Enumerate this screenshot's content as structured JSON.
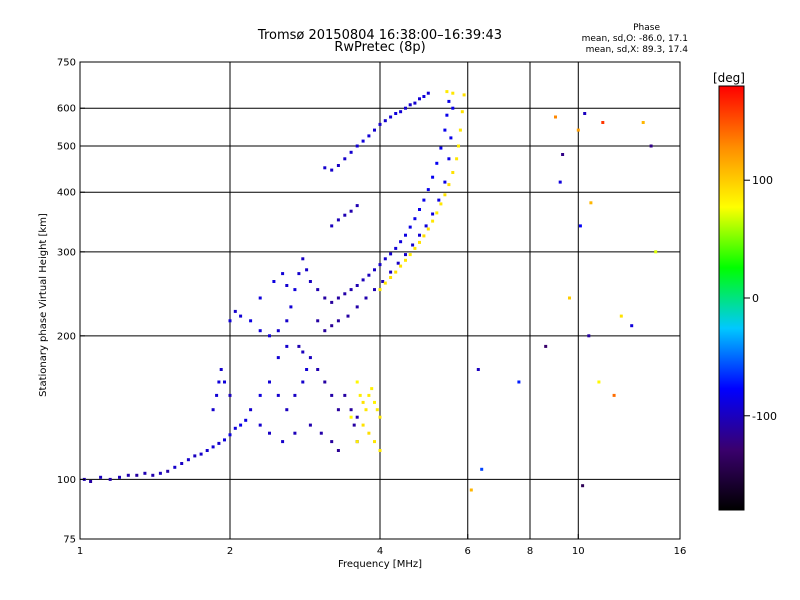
{
  "chart_data": {
    "type": "scatter",
    "title": "Tromsø 20150804 16:38:00–16:39:43",
    "subtitle": "RwPretec (8p)",
    "xlabel": "Frequency [MHz]",
    "ylabel": "Stationary phase Virtual Height [km]",
    "x_scale": "log",
    "y_scale": "log",
    "xlim": [
      1,
      16
    ],
    "ylim": [
      75,
      750
    ],
    "x_ticks": [
      "1",
      "2",
      "4",
      "6",
      "8",
      "10",
      "16"
    ],
    "y_ticks": [
      "75",
      "100",
      "200",
      "300",
      "400",
      "500",
      "600",
      "750"
    ],
    "x_gridlines": [
      2,
      4,
      6,
      8,
      10
    ],
    "y_gridlines": [
      100,
      200,
      300,
      400,
      500,
      600
    ],
    "colorbar": {
      "label": "[deg]",
      "ticks": [
        "100",
        "0",
        "-100"
      ],
      "range": [
        -180,
        180
      ],
      "colors": [
        "#000000",
        "#3a006e",
        "#0000ff",
        "#00c8ff",
        "#00ff00",
        "#ffff00",
        "#ff8c00",
        "#ff0000"
      ]
    },
    "phase_stats": {
      "title": "Phase",
      "o_line": "mean, sd,O: -86.0, 17.1",
      "x_line": "mean, sd,X: 89.3, 17.4"
    },
    "series": [
      {
        "points": [
          [
            1.02,
            100,
            -105
          ],
          [
            1.05,
            99,
            -110
          ],
          [
            1.1,
            101,
            -100
          ],
          [
            1.15,
            100,
            -108
          ],
          [
            1.2,
            101,
            -102
          ],
          [
            1.25,
            102,
            -105
          ],
          [
            1.3,
            102,
            -110
          ],
          [
            1.35,
            103,
            -104
          ],
          [
            1.4,
            102,
            -106
          ],
          [
            1.45,
            103,
            -100
          ],
          [
            1.5,
            104,
            -108
          ],
          [
            1.55,
            106,
            -96
          ],
          [
            1.6,
            108,
            -98
          ],
          [
            1.65,
            110,
            -95
          ],
          [
            1.7,
            112,
            -100
          ],
          [
            1.75,
            113,
            -96
          ],
          [
            1.8,
            115,
            -94
          ],
          [
            1.85,
            117,
            -92
          ],
          [
            1.9,
            119,
            -95
          ],
          [
            1.95,
            121,
            -90
          ],
          [
            2.0,
            124,
            -88
          ],
          [
            2.05,
            128,
            -90
          ],
          [
            2.1,
            130,
            -85
          ],
          [
            2.15,
            133,
            -88
          ],
          [
            1.85,
            140,
            -95
          ],
          [
            1.88,
            150,
            -92
          ],
          [
            1.9,
            160,
            -90
          ],
          [
            1.92,
            170,
            -95
          ],
          [
            1.95,
            160,
            -90
          ],
          [
            2.0,
            150,
            -100
          ],
          [
            2.2,
            140,
            -95
          ],
          [
            2.3,
            150,
            -90
          ],
          [
            2.4,
            160,
            -92
          ],
          [
            2.5,
            150,
            -95
          ],
          [
            2.6,
            140,
            -100
          ],
          [
            2.7,
            150,
            -98
          ],
          [
            2.8,
            160,
            -95
          ],
          [
            2.85,
            170,
            -92
          ],
          [
            2.9,
            180,
            -100
          ],
          [
            3.0,
            170,
            -105
          ],
          [
            3.1,
            160,
            -110
          ],
          [
            3.2,
            150,
            -108
          ],
          [
            3.3,
            140,
            -112
          ],
          [
            3.4,
            150,
            -110
          ],
          [
            3.5,
            140,
            -112
          ],
          [
            3.55,
            130,
            -110
          ],
          [
            3.6,
            135,
            -108
          ],
          [
            2.75,
            190,
            -105
          ],
          [
            2.8,
            185,
            -100
          ],
          [
            2.6,
            190,
            -95
          ],
          [
            2.5,
            180,
            -92
          ],
          [
            3.2,
            120,
            -112
          ],
          [
            3.3,
            115,
            -115
          ],
          [
            3.6,
            120,
            -110
          ],
          [
            2.3,
            130,
            -95
          ],
          [
            2.4,
            125,
            -98
          ],
          [
            2.55,
            120,
            -96
          ],
          [
            2.7,
            125,
            -102
          ],
          [
            2.9,
            130,
            -106
          ],
          [
            3.05,
            125,
            -108
          ]
        ]
      },
      {
        "points": [
          [
            2.0,
            215,
            -90
          ],
          [
            2.05,
            225,
            -95
          ],
          [
            2.1,
            220,
            -92
          ],
          [
            2.2,
            215,
            -88
          ],
          [
            2.3,
            205,
            -90
          ],
          [
            2.4,
            200,
            -92
          ],
          [
            2.5,
            205,
            -94
          ],
          [
            2.6,
            215,
            -96
          ],
          [
            2.65,
            230,
            -92
          ],
          [
            2.7,
            250,
            -90
          ],
          [
            2.75,
            270,
            -95
          ],
          [
            2.8,
            290,
            -98
          ],
          [
            2.3,
            240,
            -90
          ],
          [
            2.45,
            260,
            -88
          ],
          [
            2.55,
            270,
            -92
          ],
          [
            2.6,
            255,
            -94
          ],
          [
            2.85,
            275,
            -96
          ],
          [
            2.9,
            260,
            -100
          ],
          [
            3.0,
            250,
            -105
          ],
          [
            3.1,
            240,
            -110
          ],
          [
            3.2,
            235,
            -112
          ],
          [
            3.3,
            240,
            -110
          ],
          [
            3.4,
            245,
            -108
          ],
          [
            3.5,
            250,
            -106
          ],
          [
            3.6,
            255,
            -104
          ],
          [
            3.7,
            262,
            -102
          ],
          [
            3.8,
            268,
            -100
          ],
          [
            3.9,
            275,
            -98
          ],
          [
            4.0,
            282,
            -96
          ],
          [
            4.1,
            290,
            -95
          ],
          [
            4.2,
            297,
            -94
          ],
          [
            4.3,
            305,
            -92
          ],
          [
            4.4,
            315,
            -90
          ],
          [
            4.5,
            325,
            -88
          ],
          [
            4.6,
            338,
            -87
          ],
          [
            4.7,
            352,
            -86
          ],
          [
            4.8,
            368,
            -85
          ],
          [
            4.9,
            385,
            -84
          ],
          [
            5.0,
            405,
            -83
          ],
          [
            5.1,
            430,
            -82
          ],
          [
            5.2,
            460,
            -82
          ],
          [
            5.3,
            495,
            -83
          ],
          [
            5.4,
            540,
            -84
          ],
          [
            5.45,
            580,
            -85
          ],
          [
            5.5,
            620,
            -86
          ],
          [
            3.0,
            215,
            -110
          ],
          [
            3.1,
            205,
            -112
          ],
          [
            3.2,
            210,
            -114
          ],
          [
            3.3,
            215,
            -112
          ],
          [
            3.45,
            220,
            -110
          ],
          [
            3.6,
            230,
            -108
          ],
          [
            3.75,
            240,
            -106
          ],
          [
            3.9,
            250,
            -104
          ],
          [
            4.05,
            260,
            -102
          ],
          [
            4.2,
            272,
            -100
          ],
          [
            4.35,
            284,
            -98
          ],
          [
            4.5,
            296,
            -96
          ],
          [
            4.65,
            310,
            -94
          ],
          [
            4.8,
            325,
            -92
          ],
          [
            4.95,
            340,
            -90
          ],
          [
            5.1,
            360,
            -89
          ],
          [
            5.25,
            385,
            -88
          ],
          [
            5.4,
            420,
            -87
          ],
          [
            5.5,
            470,
            -86
          ],
          [
            5.55,
            520,
            -85
          ],
          [
            5.6,
            600,
            -84
          ]
        ]
      },
      {
        "points": [
          [
            3.1,
            450,
            -95
          ],
          [
            3.2,
            445,
            -96
          ],
          [
            3.3,
            455,
            -98
          ],
          [
            3.4,
            470,
            -96
          ],
          [
            3.5,
            485,
            -94
          ],
          [
            3.6,
            500,
            -92
          ],
          [
            3.7,
            512,
            -90
          ],
          [
            3.8,
            525,
            -92
          ],
          [
            3.9,
            540,
            -94
          ],
          [
            4.0,
            555,
            -96
          ],
          [
            4.1,
            565,
            -94
          ],
          [
            4.2,
            575,
            -92
          ],
          [
            4.3,
            585,
            -90
          ],
          [
            4.4,
            590,
            -92
          ],
          [
            4.5,
            600,
            -94
          ],
          [
            4.6,
            610,
            -96
          ],
          [
            4.7,
            615,
            -94
          ],
          [
            4.8,
            628,
            -92
          ],
          [
            4.9,
            635,
            -90
          ],
          [
            5.0,
            645,
            -92
          ],
          [
            3.2,
            340,
            -100
          ],
          [
            3.3,
            350,
            -102
          ],
          [
            3.4,
            358,
            -104
          ],
          [
            3.5,
            365,
            -106
          ],
          [
            3.6,
            375,
            -104
          ]
        ]
      },
      {
        "points": [
          [
            3.6,
            160,
            80
          ],
          [
            3.65,
            150,
            85
          ],
          [
            3.7,
            145,
            90
          ],
          [
            3.75,
            140,
            88
          ],
          [
            3.8,
            150,
            86
          ],
          [
            3.85,
            155,
            84
          ],
          [
            3.9,
            145,
            82
          ],
          [
            3.95,
            140,
            86
          ],
          [
            4.0,
            135,
            88
          ],
          [
            3.7,
            130,
            90
          ],
          [
            3.8,
            125,
            92
          ],
          [
            3.9,
            120,
            88
          ],
          [
            4.0,
            115,
            86
          ],
          [
            3.6,
            120,
            84
          ],
          [
            3.5,
            135,
            80
          ],
          [
            4.0,
            250,
            85
          ],
          [
            4.1,
            258,
            88
          ],
          [
            4.2,
            265,
            90
          ],
          [
            4.3,
            272,
            92
          ],
          [
            4.4,
            280,
            90
          ],
          [
            4.5,
            288,
            88
          ],
          [
            4.6,
            296,
            86
          ],
          [
            4.7,
            305,
            88
          ],
          [
            4.8,
            314,
            90
          ],
          [
            4.9,
            324,
            92
          ],
          [
            5.0,
            335,
            90
          ],
          [
            5.1,
            348,
            88
          ],
          [
            5.2,
            362,
            86
          ],
          [
            5.3,
            378,
            88
          ],
          [
            5.4,
            395,
            90
          ],
          [
            5.5,
            415,
            92
          ],
          [
            5.6,
            440,
            90
          ],
          [
            5.7,
            470,
            88
          ],
          [
            5.75,
            500,
            86
          ],
          [
            5.8,
            540,
            88
          ],
          [
            5.85,
            590,
            90
          ],
          [
            5.9,
            640,
            92
          ],
          [
            5.6,
            645,
            88
          ],
          [
            5.45,
            650,
            86
          ]
        ]
      },
      {
        "points": [
          [
            9.0,
            575,
            130
          ],
          [
            9.3,
            480,
            -120
          ],
          [
            9.2,
            420,
            -90
          ],
          [
            10.3,
            585,
            -100
          ],
          [
            10.0,
            540,
            120
          ],
          [
            10.6,
            380,
            110
          ],
          [
            10.1,
            340,
            -80
          ],
          [
            10.5,
            200,
            -110
          ],
          [
            11.0,
            160,
            80
          ],
          [
            12.2,
            220,
            90
          ],
          [
            14.0,
            500,
            -120
          ],
          [
            14.3,
            300,
            70
          ],
          [
            11.2,
            560,
            160
          ],
          [
            9.6,
            240,
            100
          ],
          [
            8.6,
            190,
            -130
          ],
          [
            7.6,
            160,
            -70
          ],
          [
            6.3,
            170,
            -100
          ],
          [
            6.4,
            105,
            -60
          ],
          [
            6.1,
            95,
            110
          ],
          [
            10.2,
            97,
            -140
          ],
          [
            11.8,
            150,
            140
          ],
          [
            12.8,
            210,
            -90
          ],
          [
            13.5,
            560,
            110
          ]
        ]
      }
    ]
  }
}
